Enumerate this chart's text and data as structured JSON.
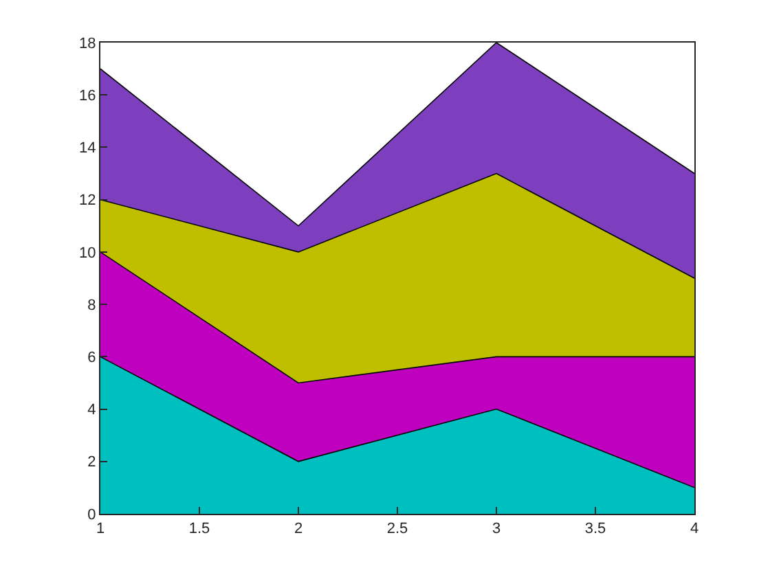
{
  "chart_data": {
    "type": "area",
    "stacked": true,
    "x": [
      1,
      2,
      3,
      4
    ],
    "series": [
      {
        "color": "#00bfbf",
        "values": [
          6,
          2,
          4,
          1
        ]
      },
      {
        "color": "#bf00bf",
        "values": [
          4,
          3,
          2,
          5
        ]
      },
      {
        "color": "#bfbf00",
        "values": [
          2,
          5,
          7,
          3
        ]
      },
      {
        "color": "#7e3fbf",
        "values": [
          5,
          1,
          5,
          4
        ]
      }
    ],
    "xlim": [
      1,
      4
    ],
    "xticks": [
      1,
      1.5,
      2,
      2.5,
      3,
      3.5,
      4
    ],
    "ylim": [
      0,
      18
    ],
    "yticks": [
      0,
      2,
      4,
      6,
      8,
      10,
      12,
      14,
      16,
      18
    ]
  }
}
